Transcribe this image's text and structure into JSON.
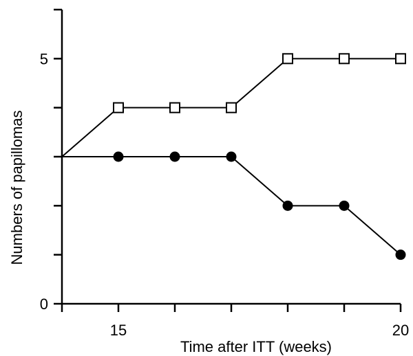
{
  "chart_data": {
    "type": "line",
    "title": "",
    "xlabel": "Time after ITT (weeks)",
    "ylabel": "Numbers of papillomas",
    "xlim": [
      14,
      20
    ],
    "ylim": [
      0,
      6
    ],
    "x_ticks": [
      14,
      15,
      16,
      17,
      18,
      19,
      20
    ],
    "x_tick_labels": [
      "",
      "15",
      "",
      "",
      "",
      "",
      "20"
    ],
    "y_ticks": [
      0,
      1,
      2,
      3,
      4,
      5,
      6
    ],
    "y_tick_labels": [
      "0",
      "",
      "",
      "",
      "",
      "5",
      ""
    ],
    "grid": false,
    "legend": "none",
    "series": [
      {
        "marker": "open-square",
        "color": "#000000",
        "x": [
          14,
          15,
          16,
          17,
          18,
          19,
          20
        ],
        "y": [
          3,
          4,
          4,
          4,
          5,
          5,
          5
        ]
      },
      {
        "marker": "filled-circle",
        "color": "#000000",
        "x": [
          14,
          15,
          16,
          17,
          18,
          19,
          20
        ],
        "y": [
          3,
          3,
          3,
          3,
          2,
          2,
          1
        ]
      }
    ]
  }
}
